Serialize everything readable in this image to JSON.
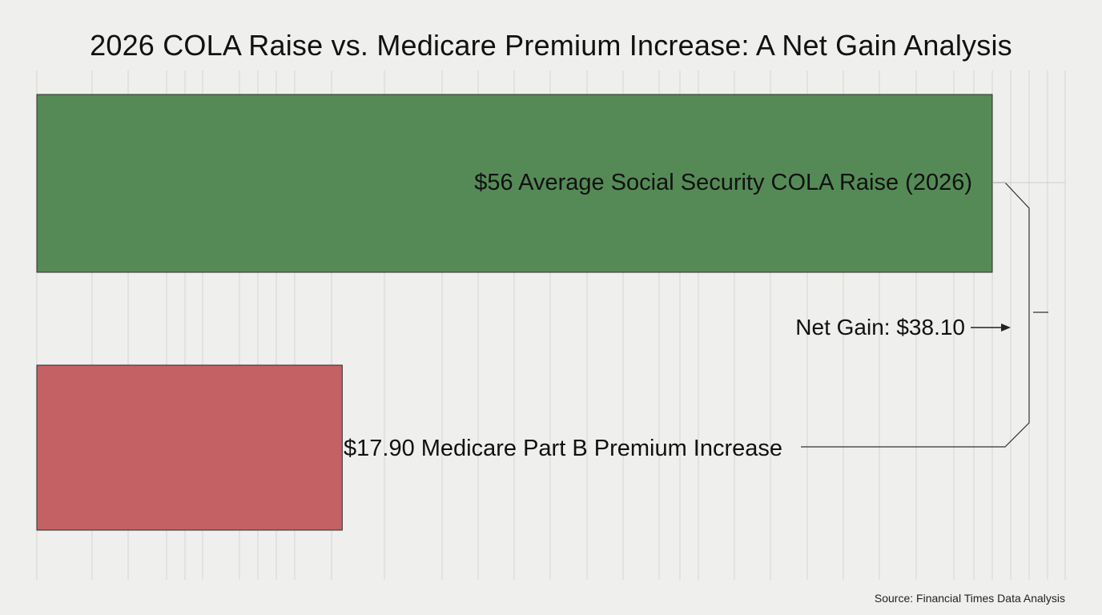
{
  "chart_data": {
    "type": "bar",
    "orientation": "horizontal",
    "title": "2026 COLA Raise vs. Medicare Premium Increase: A Net Gain Analysis",
    "categories": [
      "Average Social Security COLA Raise (2026)",
      "Medicare Part B Premium Increase"
    ],
    "values": [
      56,
      17.9
    ],
    "data_labels": [
      "$56 Average Social Security COLA Raise (2026)",
      "$17.90 Medicare Part B Premium Increase"
    ],
    "colors": [
      "#558a57",
      "#c46164"
    ],
    "xlim": [
      0,
      60
    ],
    "grid": true,
    "annotation": {
      "text": "Net Gain: $38.10",
      "value": 38.1
    },
    "source": "Source: Financial Times Data Analysis"
  }
}
